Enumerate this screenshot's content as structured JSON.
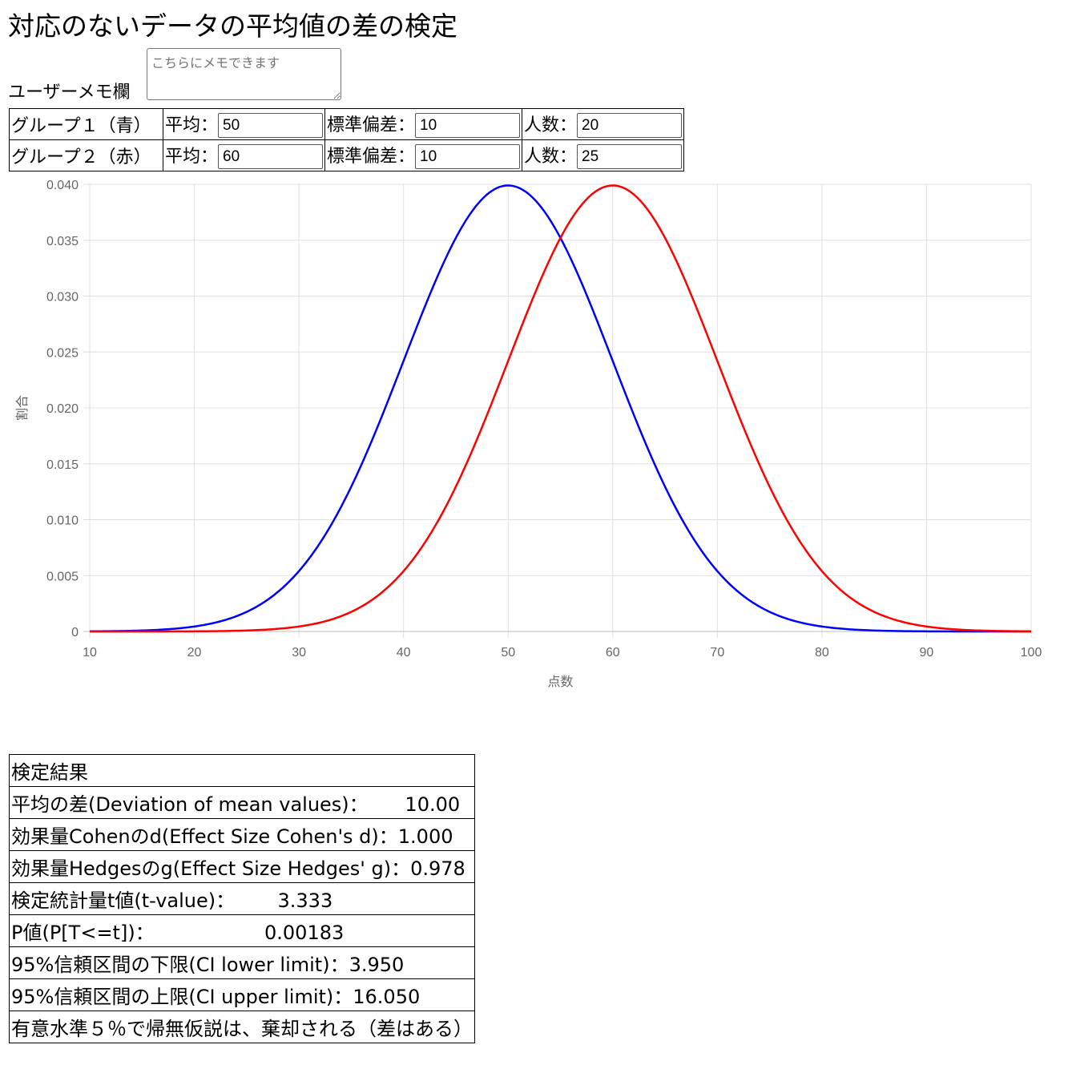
{
  "title": "対応のないデータの平均値の差の検定",
  "memo": {
    "label": "ユーザーメモ欄",
    "placeholder": "こちらにメモできます"
  },
  "groups": [
    {
      "name": "グループ１（青）",
      "mean_label": "平均：",
      "mean": "50",
      "sd_label": "標準偏差：",
      "sd": "10",
      "n_label": "人数：",
      "n": "20",
      "color": "#0000ff"
    },
    {
      "name": "グループ２（赤）",
      "mean_label": "平均：",
      "mean": "60",
      "sd_label": "標準偏差：",
      "sd": "10",
      "n_label": "人数：",
      "n": "25",
      "color": "#ff0000"
    }
  ],
  "chart_data": {
    "type": "line",
    "xlabel": "点数",
    "ylabel": "割合",
    "xlim": [
      10,
      100
    ],
    "ylim": [
      0,
      0.04
    ],
    "x_ticks": [
      "10",
      "20",
      "30",
      "40",
      "50",
      "60",
      "70",
      "80",
      "90",
      "100"
    ],
    "y_ticks": [
      "0",
      "0.005",
      "0.010",
      "0.015",
      "0.020",
      "0.025",
      "0.030",
      "0.035",
      "0.040"
    ],
    "grid": true,
    "series": [
      {
        "distribution": "normal",
        "mean": 50,
        "sd": 10,
        "color": "#0000ff"
      },
      {
        "distribution": "normal",
        "mean": 60,
        "sd": 10,
        "color": "#ff0000"
      }
    ]
  },
  "results": {
    "header": "検定結果",
    "rows": [
      "平均の差(Deviation of mean values)：      10.00",
      "効果量Cohenのd(Effect Size Cohen's d)：1.000",
      "効果量Hedgesのg(Effect Size Hedges' g)：0.978",
      "検定統計量t値(t-value)：       3.333",
      "P値(P[T<=t])：                  0.00183",
      "95%信頼区間の下限(CI lower limit)：3.950",
      "95%信頼区間の上限(CI upper limit)：16.050",
      "有意水準５％で帰無仮説は、棄却される（差はある）"
    ]
  }
}
